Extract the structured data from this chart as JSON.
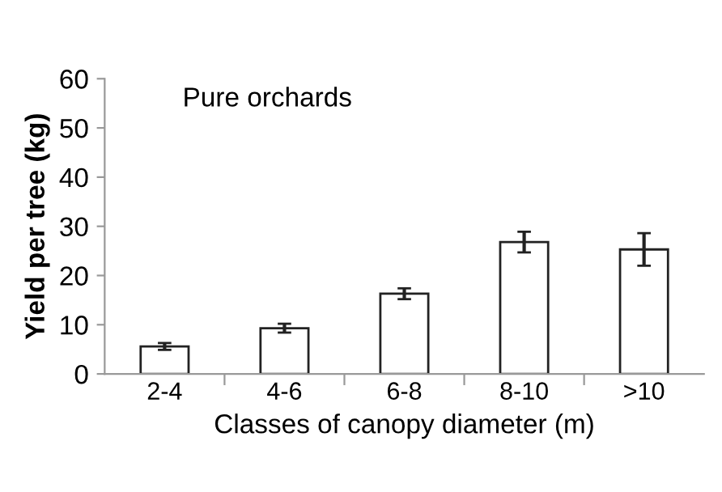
{
  "chart_data": {
    "type": "bar",
    "categories": [
      "2-4",
      "4-6",
      "6-8",
      "8-10",
      ">10"
    ],
    "values": [
      5.6,
      9.3,
      16.3,
      26.8,
      25.3
    ],
    "errors": [
      0.7,
      0.9,
      1.1,
      2.1,
      3.3
    ],
    "color": "#ffffff",
    "xlabel": "Classes of canopy diameter (m)",
    "ylabel": "Yield per tree (kg)",
    "annotations": [
      "Pure orchards"
    ],
    "ylim": [
      0,
      60
    ],
    "yticks": [
      0,
      10,
      20,
      30,
      40,
      50,
      60
    ],
    "grid": false
  }
}
